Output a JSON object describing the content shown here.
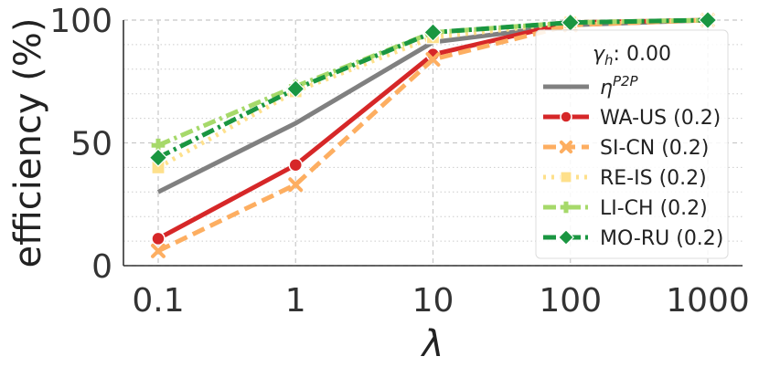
{
  "chart_data": {
    "type": "line",
    "xlabel": "λ",
    "ylabel": "efficiency (%)",
    "x_scale": "log",
    "x": [
      0.1,
      1,
      10,
      100,
      1000
    ],
    "x_tick_labels": [
      "0.1",
      "1",
      "10",
      "100",
      "1000"
    ],
    "ylim": [
      0,
      100
    ],
    "y_ticks": [
      0,
      50,
      100
    ],
    "y_tick_labels": [
      "0",
      "50",
      "100"
    ],
    "grid": true,
    "legend": {
      "placement": "right",
      "title_prefix": "γ",
      "title_sub": "h",
      "title_suffix": ": 0.00"
    },
    "series": [
      {
        "name": "η",
        "name_sup": "P2P",
        "color": "#808080",
        "dash": "solid",
        "marker": "none",
        "values": [
          30,
          58,
          91,
          98,
          100
        ]
      },
      {
        "name": "WA-US (0.2)",
        "color": "#d62728",
        "dash": "solid",
        "marker": "circle",
        "values": [
          11,
          41,
          86,
          99,
          100
        ]
      },
      {
        "name": "SI-CN (0.2)",
        "color": "#fdae61",
        "dash": "dash",
        "marker": "x",
        "values": [
          6,
          33,
          84,
          98,
          100
        ]
      },
      {
        "name": "RE-IS (0.2)",
        "color": "#fee08b",
        "dash": "dot",
        "marker": "square",
        "values": [
          40,
          71,
          93,
          99,
          100
        ]
      },
      {
        "name": "LI-CH (0.2)",
        "color": "#a6d96a",
        "dash": "dashdot",
        "marker": "plus",
        "values": [
          49,
          73,
          95,
          99,
          100
        ]
      },
      {
        "name": "MO-RU (0.2)",
        "color": "#1a9641",
        "dash": "dashdot",
        "marker": "diamond",
        "values": [
          44,
          72,
          95,
          99,
          100
        ]
      }
    ]
  }
}
